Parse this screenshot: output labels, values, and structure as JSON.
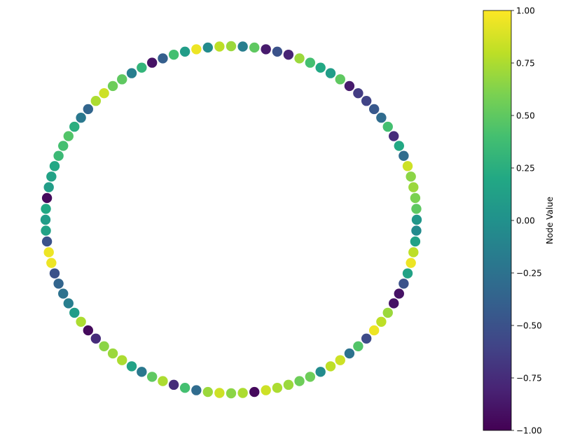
{
  "chart_data": {
    "type": "scatter",
    "layout": "circular",
    "node_count": 100,
    "node_values": [
      0.05,
      0.5,
      0.6,
      0.7,
      0.65,
      0.85,
      -0.3,
      0.2,
      -0.75,
      0.4,
      -0.3,
      -0.45,
      -0.6,
      -0.65,
      -0.85,
      0.5,
      0.1,
      0.2,
      0.4,
      0.7,
      -0.8,
      -0.5,
      -0.85,
      0.5,
      -0.15,
      0.7,
      0.8,
      -0.05,
      0.95,
      0.1,
      0.4,
      -0.4,
      -0.9,
      0.3,
      -0.15,
      0.5,
      0.55,
      0.85,
      0.75,
      -0.35,
      -0.2,
      0.25,
      0.45,
      0.4,
      0.35,
      0.2,
      0.15,
      0.1,
      -0.95,
      0.2,
      0.1,
      0.15,
      -0.5,
      0.95,
      0.95,
      -0.5,
      -0.35,
      -0.25,
      -0.15,
      0.1,
      0.75,
      -0.95,
      -0.75,
      0.65,
      0.7,
      0.75,
      0.15,
      -0.2,
      0.5,
      0.75,
      -0.75,
      0.4,
      -0.3,
      0.7,
      0.85,
      0.65,
      0.75,
      -0.95,
      0.85,
      0.75,
      0.7,
      0.55,
      0.55,
      -0.05,
      0.8,
      0.85,
      -0.25,
      0.45,
      -0.55,
      0.95,
      0.8,
      0.7,
      -0.9,
      -0.9,
      -0.5,
      0.15,
      0.95,
      0.8,
      0.15,
      -0.05
    ],
    "colorbar": {
      "label": "Node Value",
      "range": [
        -1.0,
        1.0
      ],
      "colormap": "viridis",
      "ticks": [
        1.0,
        0.75,
        0.5,
        0.25,
        0.0,
        -0.25,
        -0.5,
        -0.75,
        -1.0
      ],
      "tick_labels": [
        "1.00",
        "0.75",
        "0.50",
        "0.25",
        "0.00",
        "−0.25",
        "−0.50",
        "−0.75",
        "−1.00"
      ]
    },
    "axes_visible": false,
    "grid": false
  }
}
